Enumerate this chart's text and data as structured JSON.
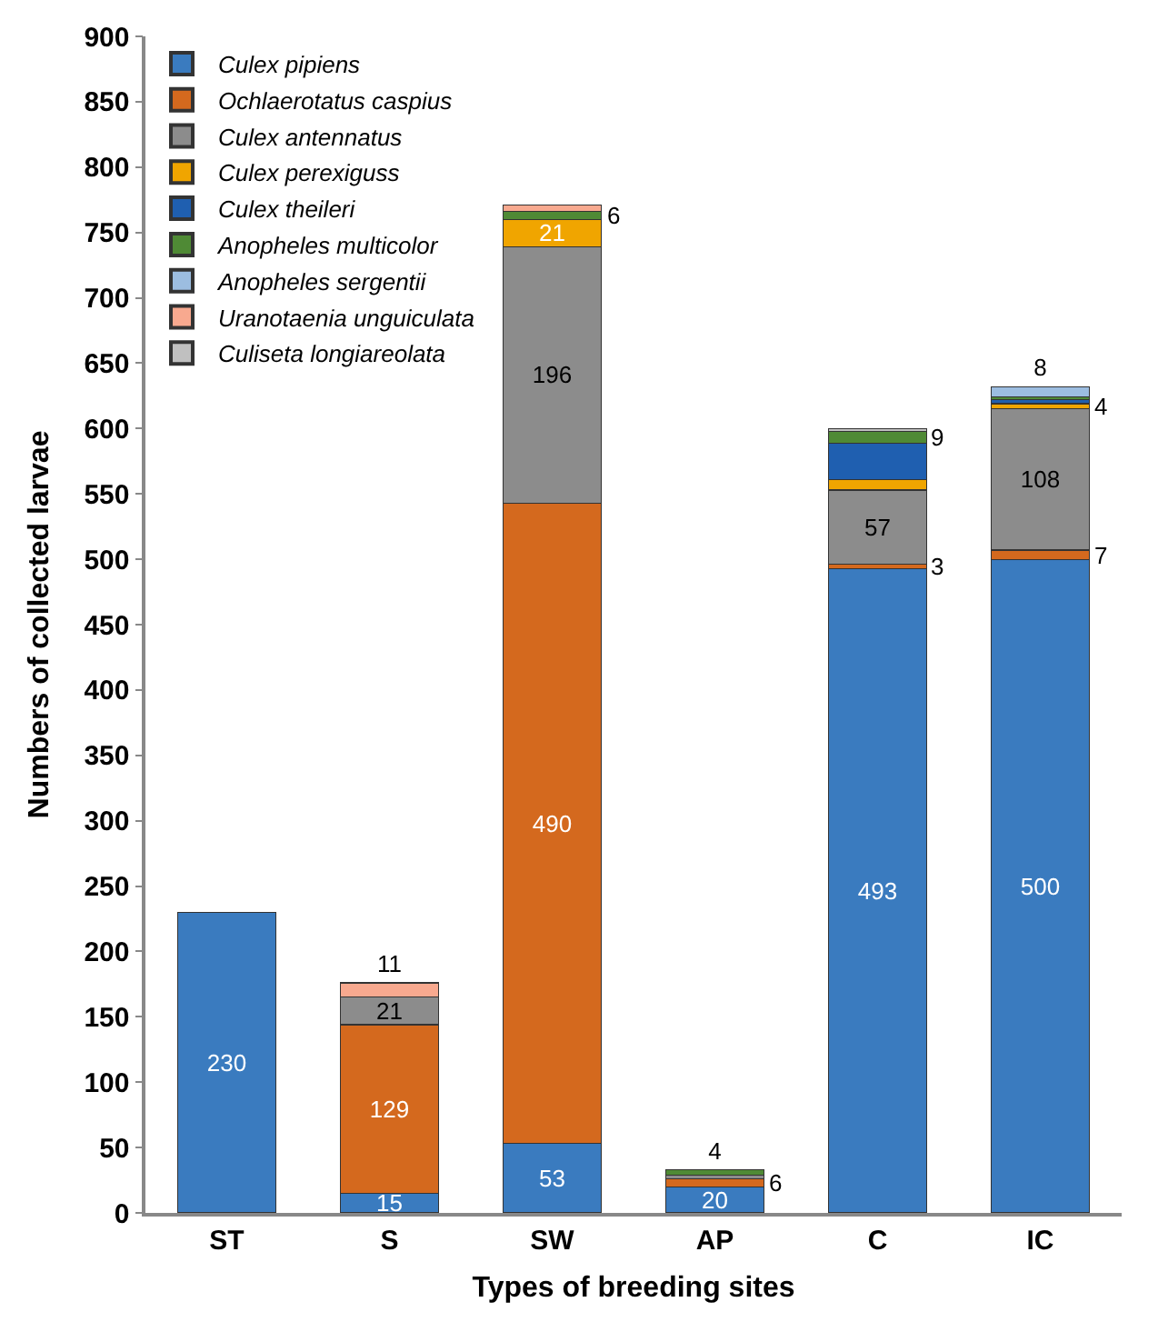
{
  "chart_data": {
    "type": "bar",
    "stacked": true,
    "xlabel": "Types of breeding sites",
    "ylabel": "Numbers of collected larvae",
    "categories": [
      "ST",
      "S",
      "SW",
      "AP",
      "C",
      "IC"
    ],
    "ylim": [
      0,
      900
    ],
    "yticks": [
      0,
      50,
      100,
      150,
      200,
      250,
      300,
      350,
      400,
      450,
      500,
      550,
      600,
      650,
      700,
      750,
      800,
      850,
      900
    ],
    "grid": false,
    "legend": "top left",
    "series": [
      {
        "name": "Culex pipiens",
        "color": "#3a7bbf",
        "values": [
          230,
          15,
          53,
          20,
          493,
          500
        ],
        "value_labels": [
          "230",
          "15",
          "53",
          "20",
          "493",
          "500"
        ]
      },
      {
        "name": "Ochlaerotatus caspius",
        "color": "#d4691e",
        "values": [
          0,
          129,
          490,
          6,
          3,
          7
        ],
        "value_labels": [
          null,
          "129",
          "490",
          "6",
          "3",
          "7"
        ]
      },
      {
        "name": "Culex antennatus",
        "color": "#8c8c8c",
        "values": [
          0,
          21,
          196,
          3,
          57,
          108
        ],
        "value_labels": [
          null,
          "21",
          "196",
          null,
          "57",
          "108"
        ]
      },
      {
        "name": "Culex perexiguss",
        "color": "#f0a500",
        "values": [
          0,
          0,
          21,
          0,
          8,
          4
        ],
        "value_labels": [
          null,
          null,
          "21",
          null,
          null,
          "4"
        ]
      },
      {
        "name": "Culex theileri",
        "color": "#1f5fb0",
        "values": [
          0,
          0,
          0,
          0,
          28,
          3
        ],
        "value_labels": [
          null,
          null,
          null,
          null,
          null,
          null
        ]
      },
      {
        "name": "Anopheles multicolor",
        "color": "#4f8a35",
        "values": [
          0,
          0,
          6,
          4,
          9,
          2
        ],
        "value_labels": [
          null,
          null,
          "6",
          "4",
          "9",
          null
        ]
      },
      {
        "name": "Anopheles sergentii",
        "color": "#9cbde0",
        "values": [
          0,
          0,
          0,
          0,
          0,
          8
        ],
        "value_labels": [
          null,
          null,
          null,
          null,
          null,
          "8"
        ]
      },
      {
        "name": "Uranotaenia unguiculata",
        "color": "#f8a98f",
        "values": [
          0,
          11,
          5,
          0,
          0,
          0
        ],
        "value_labels": [
          null,
          "11",
          null,
          null,
          null,
          null
        ]
      },
      {
        "name": "Culiseta longiareolata",
        "color": "#c0c0c0",
        "values": [
          0,
          0,
          0,
          0,
          2,
          0
        ],
        "value_labels": [
          null,
          null,
          null,
          null,
          null,
          null
        ]
      }
    ]
  }
}
